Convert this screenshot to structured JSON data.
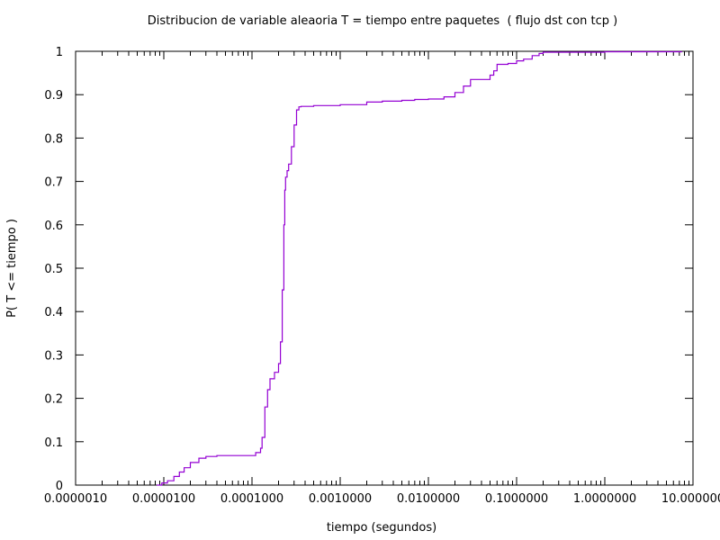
{
  "chart_data": {
    "type": "line",
    "title": "Distribucion de variable aleaoria T = tiempo entre paquetes  ( flujo dst con tcp )",
    "xlabel": "tiempo (segundos)",
    "ylabel": "P( T <= tiempo )",
    "x_scale": "log",
    "xlim": [
      1e-06,
      10
    ],
    "ylim": [
      0,
      1
    ],
    "x_ticks": [
      1e-06,
      1e-05,
      0.0001,
      0.001,
      0.01,
      0.1,
      1,
      10
    ],
    "x_tick_labels": [
      "0.0000010",
      "0.0000100",
      "0.0001000",
      "0.0010000",
      "0.0100000",
      "0.1000000",
      "1.0000000",
      "10.000000"
    ],
    "y_ticks": [
      0,
      0.1,
      0.2,
      0.3,
      0.4,
      0.5,
      0.6,
      0.7,
      0.8,
      0.9,
      1
    ],
    "y_tick_labels": [
      "0",
      "0.1",
      "0.2",
      "0.3",
      "0.4",
      "0.5",
      "0.6",
      "0.7",
      "0.8",
      "0.9",
      "1"
    ],
    "grid": false,
    "legend": "none",
    "line_color": "#9400d3",
    "series": [
      {
        "x": [
          8.3e-06,
          9.5e-06,
          1.1e-05,
          1.3e-05,
          1.5e-05,
          1.7e-05,
          2e-05,
          2.5e-05,
          3e-05,
          4e-05,
          5.5e-05,
          7e-05,
          0.0001,
          0.00011,
          0.000125,
          0.00013,
          0.00014,
          0.00015,
          0.00016,
          0.00018,
          0.0002,
          0.00021,
          0.00022,
          0.00023,
          0.000235,
          0.00024,
          0.00025,
          0.00026,
          0.00028,
          0.0003,
          0.00032,
          0.00034,
          0.00036,
          0.0005,
          0.001,
          0.002,
          0.003,
          0.005,
          0.007,
          0.01,
          0.015,
          0.02,
          0.025,
          0.03,
          0.05,
          0.055,
          0.06,
          0.08,
          0.1,
          0.12,
          0.15,
          0.18,
          0.2,
          1,
          5,
          7.5
        ],
        "y": [
          0,
          0.005,
          0.01,
          0.02,
          0.03,
          0.04,
          0.052,
          0.062,
          0.066,
          0.068,
          0.068,
          0.068,
          0.068,
          0.075,
          0.085,
          0.11,
          0.18,
          0.22,
          0.245,
          0.26,
          0.28,
          0.33,
          0.45,
          0.6,
          0.68,
          0.71,
          0.725,
          0.74,
          0.78,
          0.83,
          0.865,
          0.872,
          0.873,
          0.875,
          0.877,
          0.883,
          0.885,
          0.887,
          0.889,
          0.89,
          0.895,
          0.905,
          0.92,
          0.935,
          0.945,
          0.955,
          0.97,
          0.972,
          0.978,
          0.982,
          0.99,
          0.995,
          0.998,
          0.999,
          0.999,
          0.999
        ]
      }
    ]
  }
}
